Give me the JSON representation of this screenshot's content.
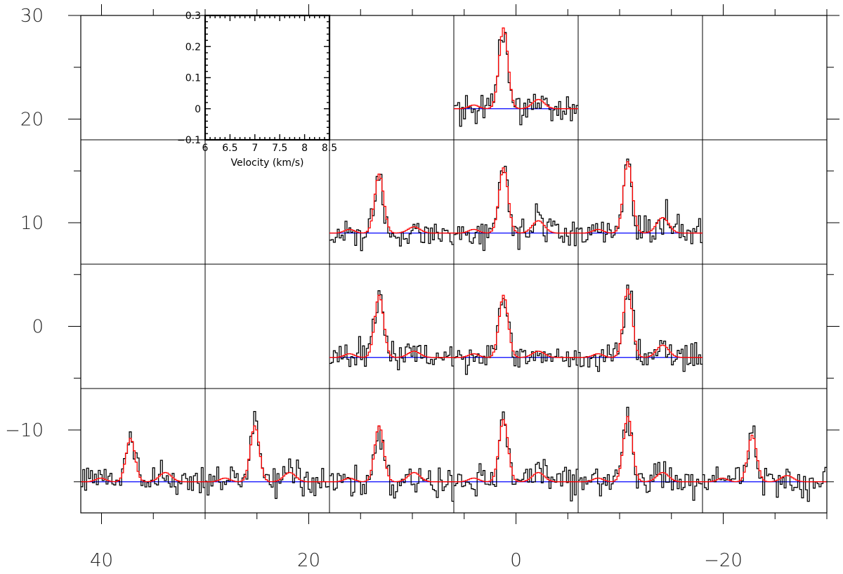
{
  "chart_data": {
    "type": "line",
    "grid": true,
    "outer_axes": {
      "x_range": [
        42.0,
        -30.0
      ],
      "y_range": [
        -18.0,
        30.0
      ],
      "x_ticks": [
        40,
        20,
        0,
        -20
      ],
      "x_tick_labels": [
        "40",
        "20",
        "0",
        "−20"
      ],
      "y_ticks": [
        30,
        20,
        10,
        0,
        -10
      ],
      "y_tick_labels": [
        "30",
        "20",
        "10",
        "0",
        "−10"
      ],
      "x_minor_step": 5,
      "y_minor_step": 5,
      "cell_size": 12,
      "columns_center": [
        36,
        24,
        12,
        0,
        -12,
        -24
      ],
      "rows_center": [
        24,
        12,
        0,
        -12
      ]
    },
    "inset_axes": {
      "xlabel": "Velocity (km/s)",
      "x_range": [
        6.0,
        8.5
      ],
      "y_range": [
        -0.1,
        0.3
      ],
      "x_ticks": [
        6,
        6.5,
        7,
        7.5,
        8,
        8.5
      ],
      "x_tick_labels": [
        "6",
        "6.5",
        "7",
        "7.5",
        "8",
        "8.5"
      ],
      "y_ticks": [
        0.3,
        0.2,
        0.1,
        0,
        -0.1
      ],
      "y_tick_labels": [
        "0.3",
        "0.2",
        "0.1",
        "0",
        "−0.1"
      ]
    },
    "series_colors": {
      "observed": "#000000",
      "model": "#ff0000",
      "baseline": "#0000ff"
    },
    "spectra": [
      {
        "col": 3,
        "row": 0,
        "a1": 0.26,
        "a2": 0.03,
        "seed": 101
      },
      {
        "col": 2,
        "row": 1,
        "a1": 0.19,
        "a2": 0.02,
        "seed": 202
      },
      {
        "col": 3,
        "row": 1,
        "a1": 0.21,
        "a2": 0.04,
        "seed": 303
      },
      {
        "col": 4,
        "row": 1,
        "a1": 0.23,
        "a2": 0.05,
        "seed": 404
      },
      {
        "col": 2,
        "row": 2,
        "a1": 0.2,
        "a2": 0.02,
        "seed": 505
      },
      {
        "col": 3,
        "row": 2,
        "a1": 0.2,
        "a2": 0.02,
        "seed": 606
      },
      {
        "col": 4,
        "row": 2,
        "a1": 0.22,
        "a2": 0.04,
        "seed": 707
      },
      {
        "col": 0,
        "row": 3,
        "a1": 0.14,
        "a2": 0.03,
        "seed": 808
      },
      {
        "col": 1,
        "row": 3,
        "a1": 0.18,
        "a2": 0.03,
        "seed": 909
      },
      {
        "col": 2,
        "row": 3,
        "a1": 0.18,
        "a2": 0.03,
        "seed": 1010
      },
      {
        "col": 3,
        "row": 3,
        "a1": 0.2,
        "a2": 0.03,
        "seed": 1111
      },
      {
        "col": 4,
        "row": 3,
        "a1": 0.21,
        "a2": 0.03,
        "seed": 1212
      },
      {
        "col": 5,
        "row": 3,
        "a1": 0.15,
        "a2": 0.02,
        "seed": 1313
      }
    ]
  }
}
